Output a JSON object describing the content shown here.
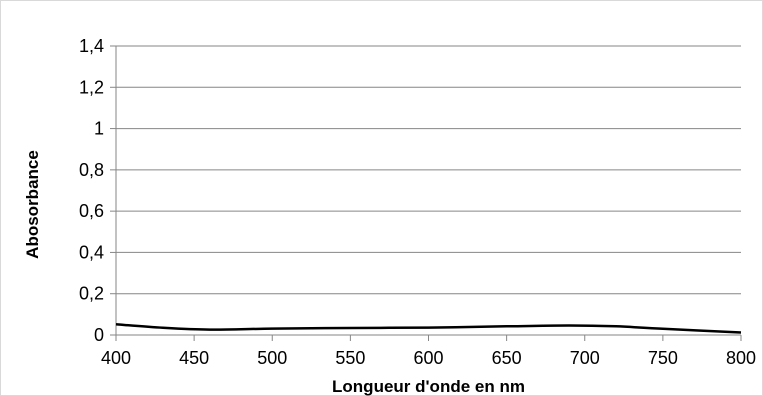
{
  "chart_data": {
    "type": "line",
    "xlabel": "Longueur d'onde en nm",
    "ylabel": "Abosorbance",
    "xlim": [
      400,
      800
    ],
    "ylim": [
      0,
      1.4
    ],
    "x_ticks": [
      "400",
      "450",
      "500",
      "550",
      "600",
      "650",
      "700",
      "750",
      "800"
    ],
    "y_ticks": [
      "0",
      "0,2",
      "0,4",
      "0,6",
      "0,8",
      "1",
      "1,2",
      "1,4"
    ],
    "x_tick_values": [
      400,
      450,
      500,
      550,
      600,
      650,
      700,
      750,
      800
    ],
    "y_tick_values": [
      0,
      0.2,
      0.4,
      0.6,
      0.8,
      1.0,
      1.2,
      1.4
    ],
    "grid": "horizontal",
    "legend": "none",
    "series": [
      {
        "x": [
          400,
          430,
          460,
          500,
          550,
          600,
          650,
          690,
          720,
          750,
          800
        ],
        "y": [
          0.052,
          0.035,
          0.026,
          0.031,
          0.034,
          0.036,
          0.042,
          0.046,
          0.042,
          0.03,
          0.012
        ],
        "color": "#000000"
      }
    ]
  }
}
